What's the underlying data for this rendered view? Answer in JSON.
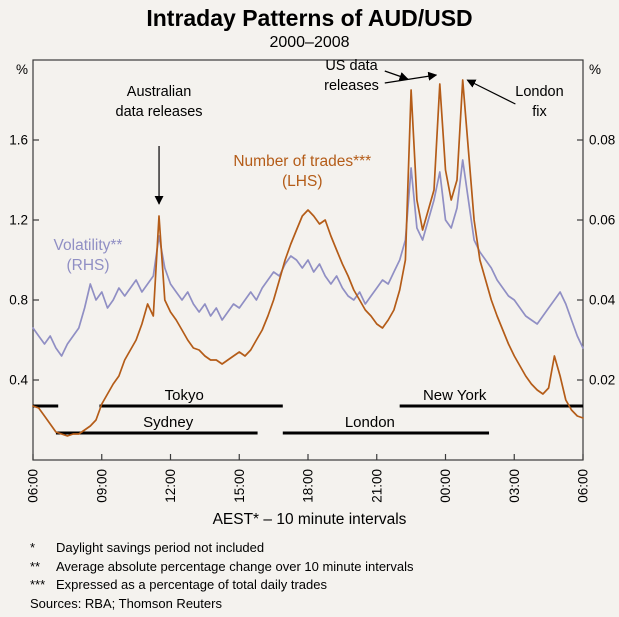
{
  "title": "Intraday Patterns of AUD/USD",
  "subtitle": "2000–2008",
  "xlabel": "AEST* – 10 minute intervals",
  "footnotes": [
    {
      "marker": "*",
      "text": "Daylight savings period not included"
    },
    {
      "marker": "**",
      "text": "Average absolute percentage change over 10 minute intervals"
    },
    {
      "marker": "***",
      "text": "Expressed as a percentage of total daily trades"
    }
  ],
  "sources": "Sources: RBA; Thomson Reuters",
  "colors": {
    "trades": "#b45c18",
    "volatility": "#908fc4",
    "axis": "#3a3a3a",
    "session": "#000000",
    "background": "#f4f2ee"
  },
  "chart_data": {
    "type": "line",
    "x_unit": "hours after 06:00 AEST, 10 minute intervals",
    "x_ticks": [
      "06:00",
      "09:00",
      "12:00",
      "15:00",
      "18:00",
      "21:00",
      "00:00",
      "03:00",
      "06:00"
    ],
    "left_axis": {
      "unit": "%",
      "ticks": [
        "0.4",
        "0.8",
        "1.2",
        "1.6"
      ],
      "tick_values": [
        0.4,
        0.8,
        1.2,
        1.6
      ],
      "min": 0,
      "max": 2.0
    },
    "right_axis": {
      "unit": "%",
      "ticks": [
        "0.02",
        "0.04",
        "0.06",
        "0.08"
      ],
      "tick_values": [
        0.02,
        0.04,
        0.06,
        0.08
      ],
      "min": 0,
      "max": 0.1
    },
    "series": [
      {
        "name": "Volatility",
        "axis": "right",
        "color_key": "volatility",
        "label_lines": [
          "Volatility**",
          "(RHS)"
        ],
        "label_hour": 2.4,
        "label_value": 1.05,
        "values": [
          0.033,
          0.031,
          0.029,
          0.031,
          0.028,
          0.026,
          0.029,
          0.031,
          0.033,
          0.038,
          0.044,
          0.04,
          0.042,
          0.038,
          0.04,
          0.043,
          0.041,
          0.043,
          0.045,
          0.042,
          0.044,
          0.046,
          0.056,
          0.048,
          0.044,
          0.042,
          0.04,
          0.042,
          0.039,
          0.037,
          0.039,
          0.036,
          0.038,
          0.035,
          0.037,
          0.039,
          0.038,
          0.04,
          0.042,
          0.04,
          0.043,
          0.045,
          0.047,
          0.046,
          0.049,
          0.051,
          0.05,
          0.048,
          0.05,
          0.047,
          0.049,
          0.046,
          0.044,
          0.046,
          0.043,
          0.041,
          0.04,
          0.042,
          0.039,
          0.041,
          0.043,
          0.045,
          0.044,
          0.047,
          0.05,
          0.055,
          0.073,
          0.058,
          0.055,
          0.06,
          0.065,
          0.072,
          0.06,
          0.058,
          0.063,
          0.075,
          0.065,
          0.055,
          0.052,
          0.05,
          0.048,
          0.045,
          0.043,
          0.041,
          0.04,
          0.038,
          0.036,
          0.035,
          0.034,
          0.036,
          0.038,
          0.04,
          0.042,
          0.039,
          0.035,
          0.031,
          0.028
        ]
      },
      {
        "name": "Number of trades",
        "axis": "left",
        "color_key": "trades",
        "label_lines": [
          "Number of trades***",
          "(LHS)"
        ],
        "label_hour": 11.75,
        "label_value": 1.47,
        "values": [
          0.27,
          0.26,
          0.22,
          0.18,
          0.14,
          0.13,
          0.12,
          0.13,
          0.13,
          0.15,
          0.17,
          0.2,
          0.28,
          0.33,
          0.38,
          0.42,
          0.5,
          0.55,
          0.6,
          0.68,
          0.78,
          0.72,
          1.22,
          0.8,
          0.74,
          0.7,
          0.65,
          0.6,
          0.56,
          0.55,
          0.52,
          0.5,
          0.5,
          0.48,
          0.5,
          0.52,
          0.54,
          0.52,
          0.55,
          0.6,
          0.65,
          0.72,
          0.8,
          0.9,
          1.0,
          1.08,
          1.15,
          1.22,
          1.25,
          1.22,
          1.18,
          1.2,
          1.12,
          1.05,
          0.98,
          0.92,
          0.85,
          0.8,
          0.75,
          0.72,
          0.68,
          0.66,
          0.7,
          0.75,
          0.85,
          1.0,
          1.85,
          1.3,
          1.15,
          1.25,
          1.35,
          1.88,
          1.45,
          1.3,
          1.4,
          1.9,
          1.55,
          1.2,
          1.0,
          0.9,
          0.8,
          0.72,
          0.65,
          0.58,
          0.52,
          0.47,
          0.42,
          0.38,
          0.35,
          0.33,
          0.36,
          0.52,
          0.42,
          0.3,
          0.25,
          0.22,
          0.21
        ]
      }
    ],
    "sessions": [
      {
        "label": "New York",
        "show_label": false,
        "start": 0.0,
        "end": 1.1,
        "level": 0.27,
        "label_hour": 0.5
      },
      {
        "label": "Sydney",
        "show_label": true,
        "start": 1.0,
        "end": 9.8,
        "level": 0.135,
        "label_hour": 5.9
      },
      {
        "label": "Tokyo",
        "show_label": true,
        "start": 2.9,
        "end": 10.9,
        "level": 0.27,
        "label_hour": 6.6
      },
      {
        "label": "London",
        "show_label": true,
        "start": 10.9,
        "end": 19.9,
        "level": 0.135,
        "label_hour": 14.7
      },
      {
        "label": "New York",
        "show_label": true,
        "start": 16.0,
        "end": 24.0,
        "level": 0.27,
        "label_hour": 18.4
      }
    ],
    "annotations": [
      {
        "lines": [
          "Australian",
          "data releases"
        ],
        "hour": 5.5,
        "value": 1.82,
        "arrows": [
          {
            "from": [
              5.5,
              1.57
            ],
            "to": [
              5.5,
              1.28
            ]
          }
        ]
      },
      {
        "lines": [
          "US data",
          "releases"
        ],
        "hour": 13.9,
        "value": 1.95,
        "arrows": [
          {
            "from": [
              15.35,
              1.945
            ],
            "to": [
              16.35,
              1.905
            ]
          },
          {
            "from": [
              15.35,
              1.885
            ],
            "to": [
              17.6,
              1.925
            ]
          }
        ]
      },
      {
        "lines": [
          "London",
          "fix"
        ],
        "hour": 22.1,
        "value": 1.82,
        "arrows": [
          {
            "from": [
              21.05,
              1.78
            ],
            "to": [
              18.95,
              1.9
            ]
          }
        ]
      }
    ]
  }
}
